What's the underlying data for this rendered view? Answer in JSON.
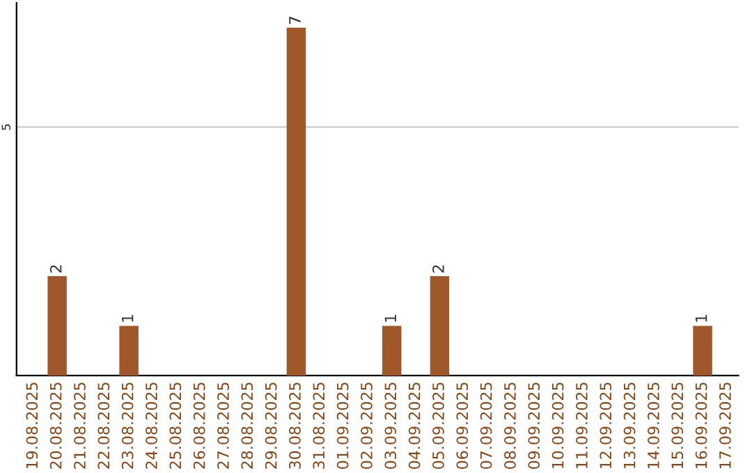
{
  "chart_data": {
    "type": "bar",
    "categories": [
      "19.08.2025",
      "20.08.2025",
      "21.08.2025",
      "22.08.2025",
      "23.08.2025",
      "24.08.2025",
      "25.08.2025",
      "26.08.2025",
      "27.08.2025",
      "28.08.2025",
      "29.08.2025",
      "30.08.2025",
      "31.08.2025",
      "01.09.2025",
      "02.09.2025",
      "03.09.2025",
      "04.09.2025",
      "05.09.2025",
      "06.09.2025",
      "07.09.2025",
      "08.09.2025",
      "09.09.2025",
      "10.09.2025",
      "11.09.2025",
      "12.09.2025",
      "13.09.2025",
      "14.09.2025",
      "15.09.2025",
      "16.09.2025",
      "17.09.2025"
    ],
    "values": [
      0,
      2,
      0,
      0,
      1,
      0,
      0,
      0,
      0,
      0,
      0,
      7,
      0,
      0,
      0,
      1,
      0,
      2,
      0,
      0,
      0,
      0,
      0,
      0,
      0,
      0,
      0,
      0,
      1,
      0
    ],
    "value_labels": [
      null,
      "2",
      null,
      null,
      "1",
      null,
      null,
      null,
      null,
      null,
      null,
      "7",
      null,
      null,
      null,
      "1",
      null,
      "2",
      null,
      null,
      null,
      null,
      null,
      null,
      null,
      null,
      null,
      null,
      "1",
      null
    ],
    "color": "#a0572a",
    "ylim": [
      0,
      7.5
    ],
    "yticks": [
      5
    ],
    "grid": "y",
    "legend": false
  }
}
